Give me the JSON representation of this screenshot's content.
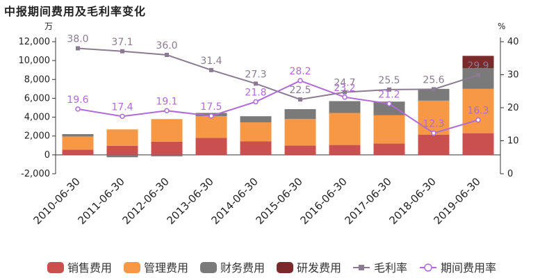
{
  "chart_data": {
    "type": "bar",
    "title": "中报期间费用及毛利率变化",
    "left_unit": "万",
    "right_unit": "%",
    "categories": [
      "2010-06-30",
      "2011-06-30",
      "2012-06-30",
      "2013-06-30",
      "2014-06-30",
      "2015-06-30",
      "2016-06-30",
      "2017-06-30",
      "2018-06-30",
      "2019-06-30"
    ],
    "left_axis": {
      "min": -2000,
      "max": 12000,
      "ticks": [
        "-2,000",
        "0",
        "2,000",
        "4,000",
        "6,000",
        "8,000",
        "10,000",
        "12,000"
      ],
      "tick_values": [
        -2000,
        0,
        2000,
        4000,
        6000,
        8000,
        10000,
        12000
      ]
    },
    "right_axis": {
      "min": 0,
      "max": 40,
      "ticks": [
        "0",
        "10",
        "20",
        "30",
        "40"
      ],
      "tick_values": [
        0,
        10,
        20,
        30,
        40
      ]
    },
    "bar_series": [
      {
        "name": "销售费用",
        "color": "#c9504f",
        "values": [
          550,
          950,
          1400,
          1800,
          1450,
          1000,
          1050,
          1200,
          2150,
          2300
        ]
      },
      {
        "name": "管理费用",
        "color": "#f69846",
        "values": [
          1400,
          1750,
          2400,
          2300,
          2000,
          2800,
          3400,
          3000,
          3600,
          4700
        ]
      },
      {
        "name": "财务费用",
        "color": "#7a7a7a",
        "values": [
          250,
          -250,
          -150,
          350,
          650,
          1050,
          1250,
          1450,
          1250,
          2200
        ]
      },
      {
        "name": "研发费用",
        "color": "#7b2a2b",
        "values": [
          0,
          0,
          0,
          0,
          0,
          0,
          0,
          0,
          0,
          1300
        ]
      }
    ],
    "line_series": [
      {
        "name": "毛利率",
        "color": "#8b7a92",
        "marker": "square",
        "values": [
          38.0,
          37.1,
          36.0,
          31.4,
          27.3,
          22.5,
          24.7,
          25.5,
          25.6,
          29.9
        ],
        "labels": [
          "38.0",
          "37.1",
          "36.0",
          "31.4",
          "27.3",
          "22.5",
          "24.7",
          "25.5",
          "25.6",
          "29.9"
        ]
      },
      {
        "name": "期间费用率",
        "color": "#b06ad8",
        "marker": "circle",
        "values": [
          19.6,
          17.4,
          19.1,
          17.5,
          21.8,
          28.2,
          23.2,
          21.2,
          12.3,
          16.3
        ],
        "labels": [
          "19.6",
          "17.4",
          "19.1",
          "17.5",
          "21.8",
          "28.2",
          "23.2",
          "21.2",
          "12.3",
          "16.3"
        ]
      }
    ],
    "legend_position": "bottom",
    "grid": false
  }
}
